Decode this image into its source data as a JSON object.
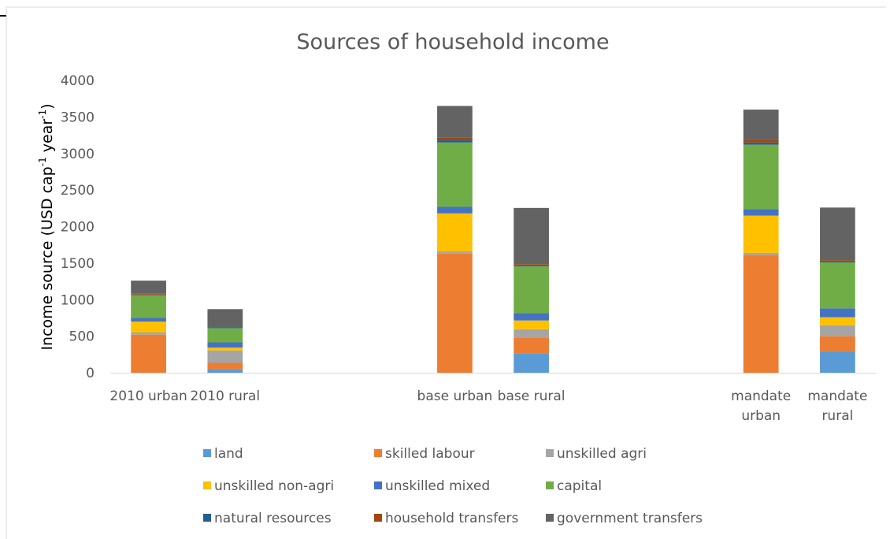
{
  "chart_data": {
    "type": "bar",
    "stacked": true,
    "title": "Sources of household income",
    "ylabel": {
      "parts": [
        "Income source (USD cap",
        "-1",
        " year",
        "-1",
        ")"
      ]
    },
    "ylim": [
      0,
      4000
    ],
    "yticks": [
      0,
      500,
      1000,
      1500,
      2000,
      2500,
      3000,
      3500,
      4000
    ],
    "gridlines": false,
    "legend_position": "bottom",
    "categories": [
      [
        "2010 urban"
      ],
      [
        "2010 rural"
      ],
      [
        "base urban"
      ],
      [
        "base rural"
      ],
      [
        "mandate",
        "urban"
      ],
      [
        "mandate",
        "rural"
      ]
    ],
    "category_groups": [
      [
        0,
        1
      ],
      [
        2,
        3
      ],
      [
        4,
        5
      ]
    ],
    "series": [
      {
        "name": "land",
        "color": "#5b9bd5",
        "values": [
          0,
          50,
          0,
          260,
          0,
          295
        ]
      },
      {
        "name": "skilled labour",
        "color": "#ed7d31",
        "values": [
          520,
          85,
          1630,
          215,
          1610,
          205
        ]
      },
      {
        "name": "unskilled agri",
        "color": "#a5a5a5",
        "values": [
          30,
          170,
          30,
          120,
          30,
          150
        ]
      },
      {
        "name": "unskilled non-agri",
        "color": "#ffc000",
        "values": [
          150,
          40,
          520,
          120,
          510,
          110
        ]
      },
      {
        "name": "unskilled mixed",
        "color": "#4472c4",
        "values": [
          50,
          70,
          90,
          100,
          90,
          120
        ]
      },
      {
        "name": "capital",
        "color": "#70ad47",
        "values": [
          310,
          195,
          880,
          640,
          880,
          630
        ]
      },
      {
        "name": "natural resources",
        "color": "#255e91",
        "values": [
          10,
          5,
          30,
          10,
          30,
          10
        ]
      },
      {
        "name": "household transfers",
        "color": "#9e480e",
        "values": [
          10,
          5,
          40,
          20,
          40,
          20
        ]
      },
      {
        "name": "government transfers",
        "color": "#636363",
        "values": [
          180,
          250,
          430,
          770,
          410,
          720
        ]
      }
    ]
  }
}
